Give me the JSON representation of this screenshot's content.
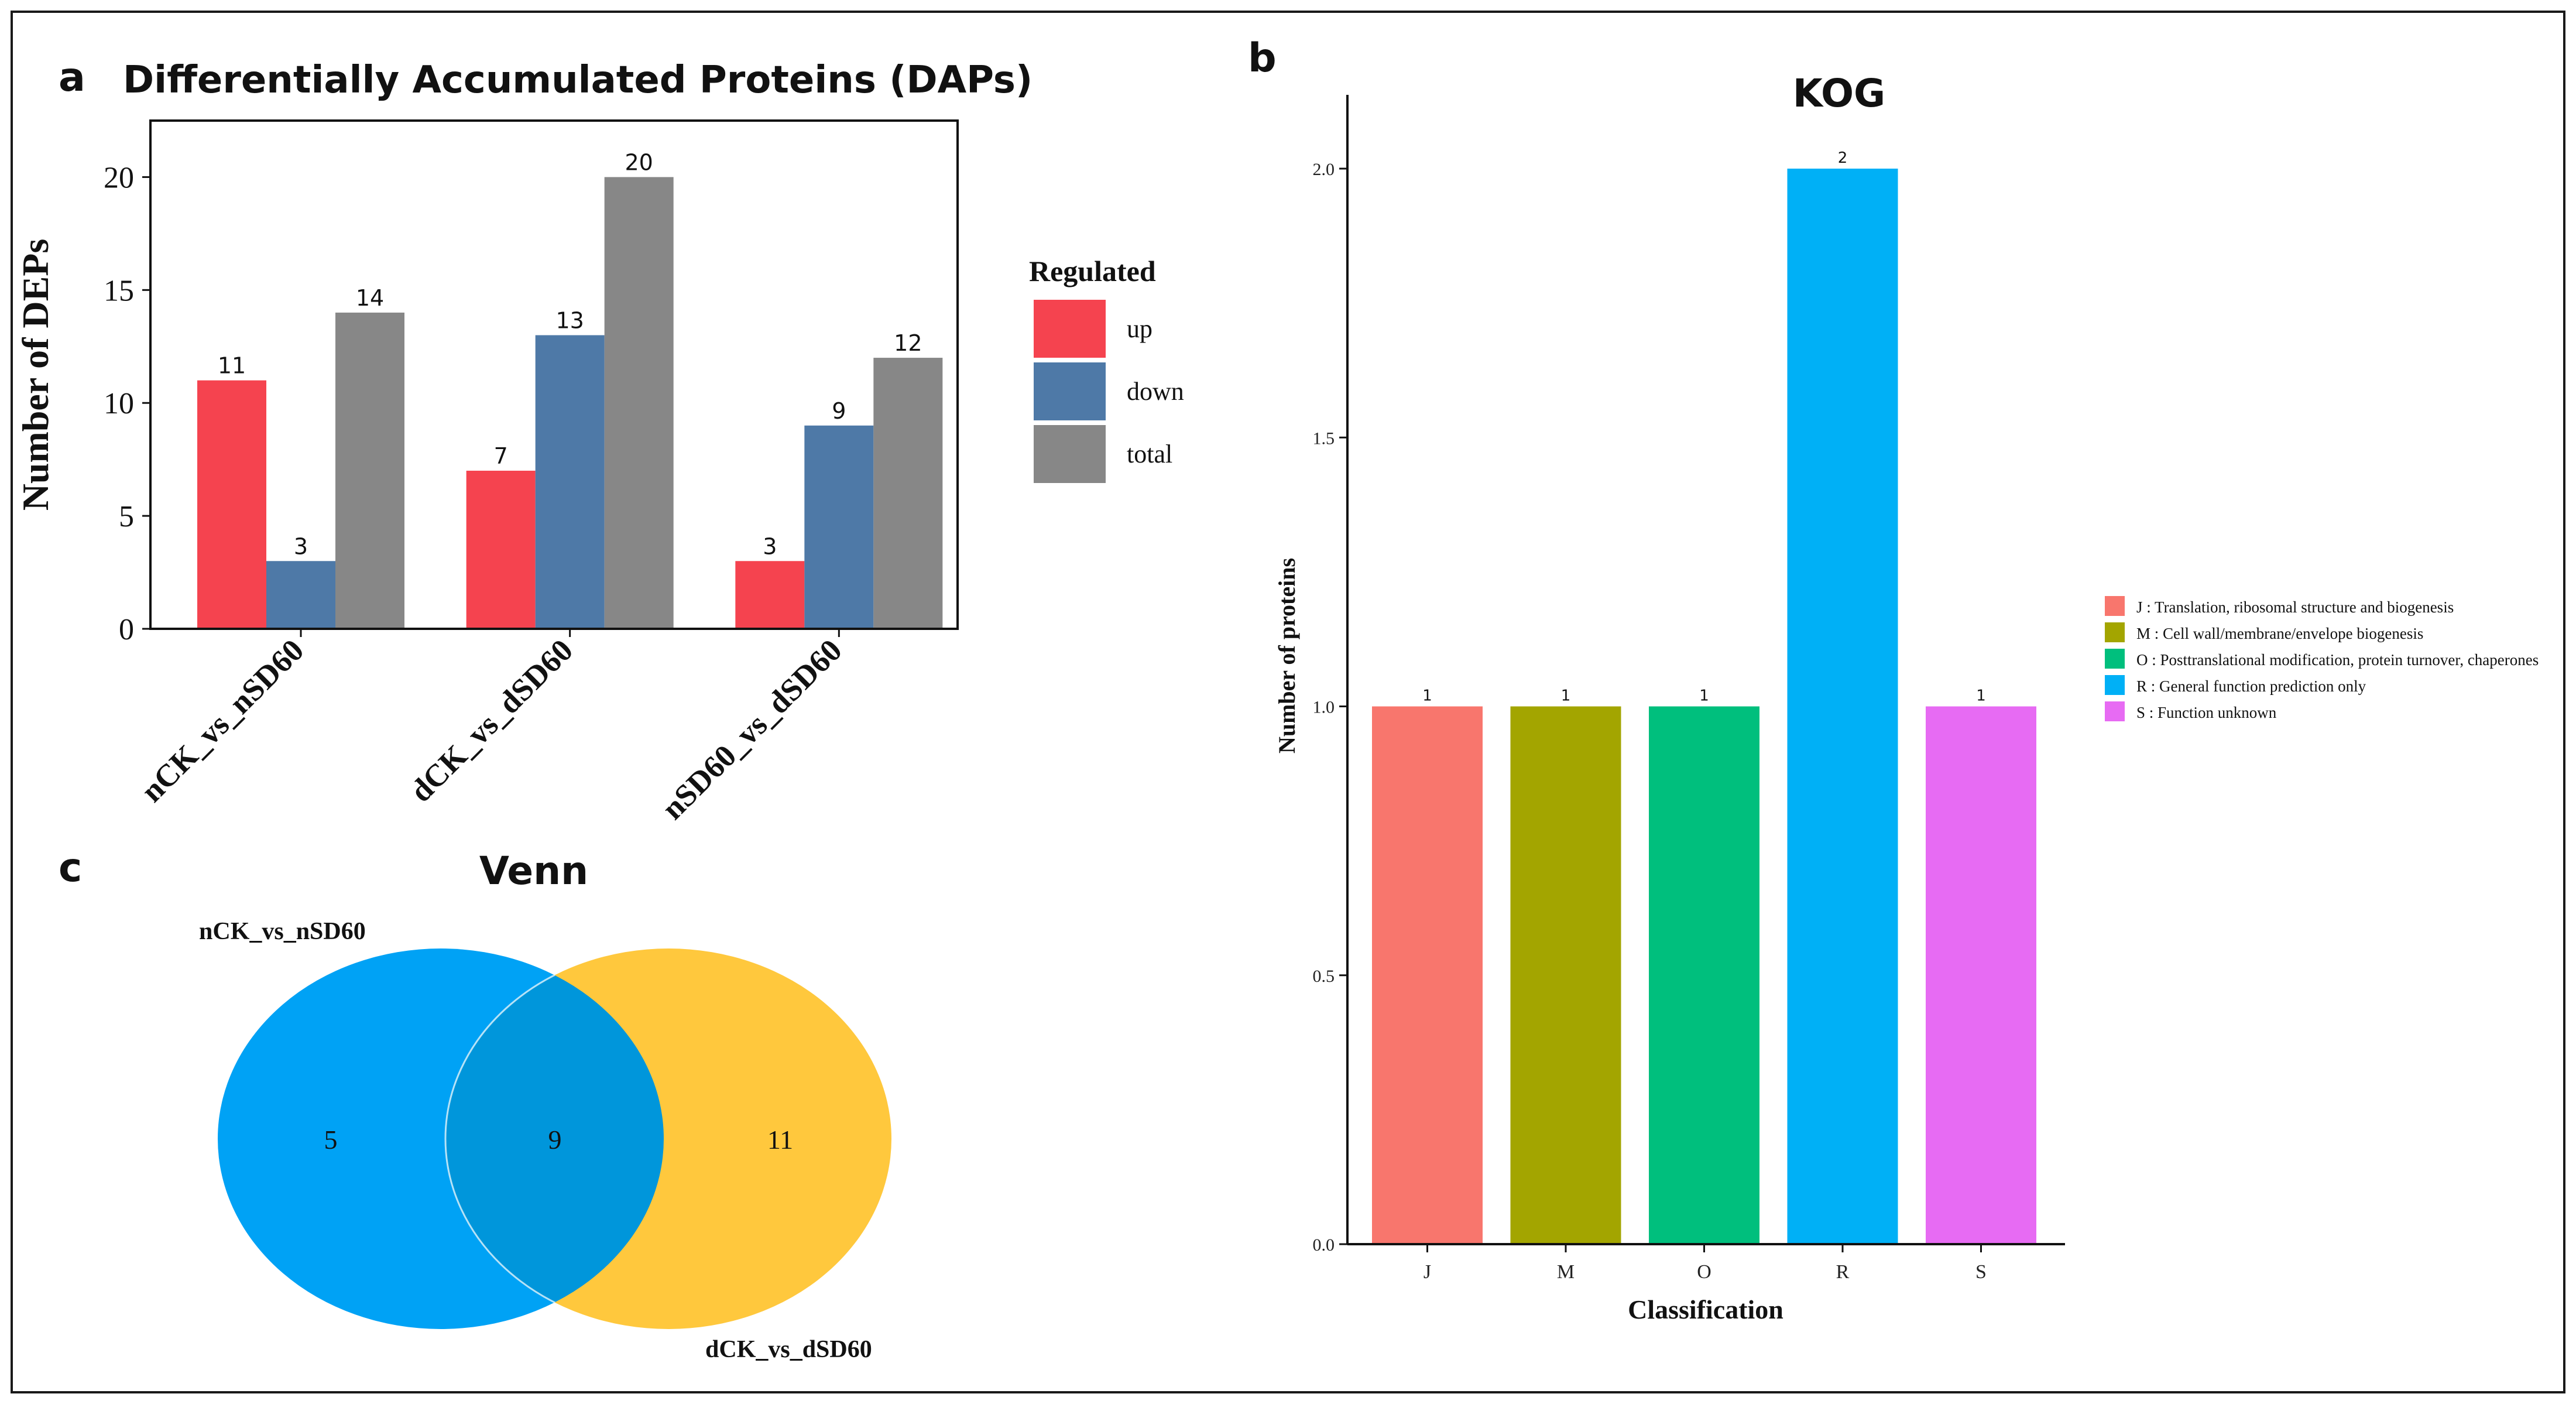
{
  "panels": {
    "a": {
      "letter": "a",
      "chart_data": {
        "type": "bar",
        "title": "Differentially Accumulated Proteins (DAPs)",
        "ylabel": "Number of DEPs",
        "xlabel": "",
        "ylim": [
          0,
          22.5
        ],
        "yticks": [
          0,
          5,
          10,
          15,
          20
        ],
        "categories": [
          "nCK_vs_nSD60",
          "dCK_vs_dSD60",
          "nSD60_vs_dSD60"
        ],
        "series": [
          {
            "name": "up",
            "color": "#F5434F",
            "values": [
              11,
              7,
              3
            ]
          },
          {
            "name": "down",
            "color": "#4E79A7",
            "values": [
              3,
              13,
              9
            ]
          },
          {
            "name": "total",
            "color": "#878787",
            "values": [
              14,
              20,
              12
            ]
          }
        ],
        "legend": {
          "title": "Regulated",
          "position": "right"
        }
      }
    },
    "b": {
      "letter": "b",
      "chart_data": {
        "type": "bar",
        "title": "KOG",
        "xlabel": "Classification",
        "ylabel": "Number of proteins",
        "ylim": [
          0,
          2.15
        ],
        "yticks": [
          "0.0",
          "0.5",
          "1.0",
          "1.5",
          "2.0"
        ],
        "categories": [
          "J",
          "M",
          "O",
          "R",
          "S"
        ],
        "values": [
          1,
          1,
          1,
          2,
          1
        ],
        "colors": [
          "#F8766D",
          "#A3A500",
          "#00BF7D",
          "#00B0F6",
          "#E76BF3"
        ],
        "legend": {
          "position": "right",
          "entries": [
            "J : Translation, ribosomal structure and biogenesis",
            "M : Cell wall/membrane/envelope biogenesis",
            "O : Posttranslational modification, protein turnover, chaperones",
            "R : General function prediction only",
            "S : Function unknown"
          ]
        }
      }
    },
    "c": {
      "letter": "c",
      "chart_data": {
        "type": "venn",
        "title": "Venn",
        "sets": [
          {
            "name": "nCK_vs_nSD60",
            "only": 5,
            "color": "#00A2F5"
          },
          {
            "name": "dCK_vs_dSD60",
            "only": 11,
            "color": "#FFC83D"
          }
        ],
        "intersection": 9,
        "intersection_color": "#0096DB"
      }
    }
  }
}
